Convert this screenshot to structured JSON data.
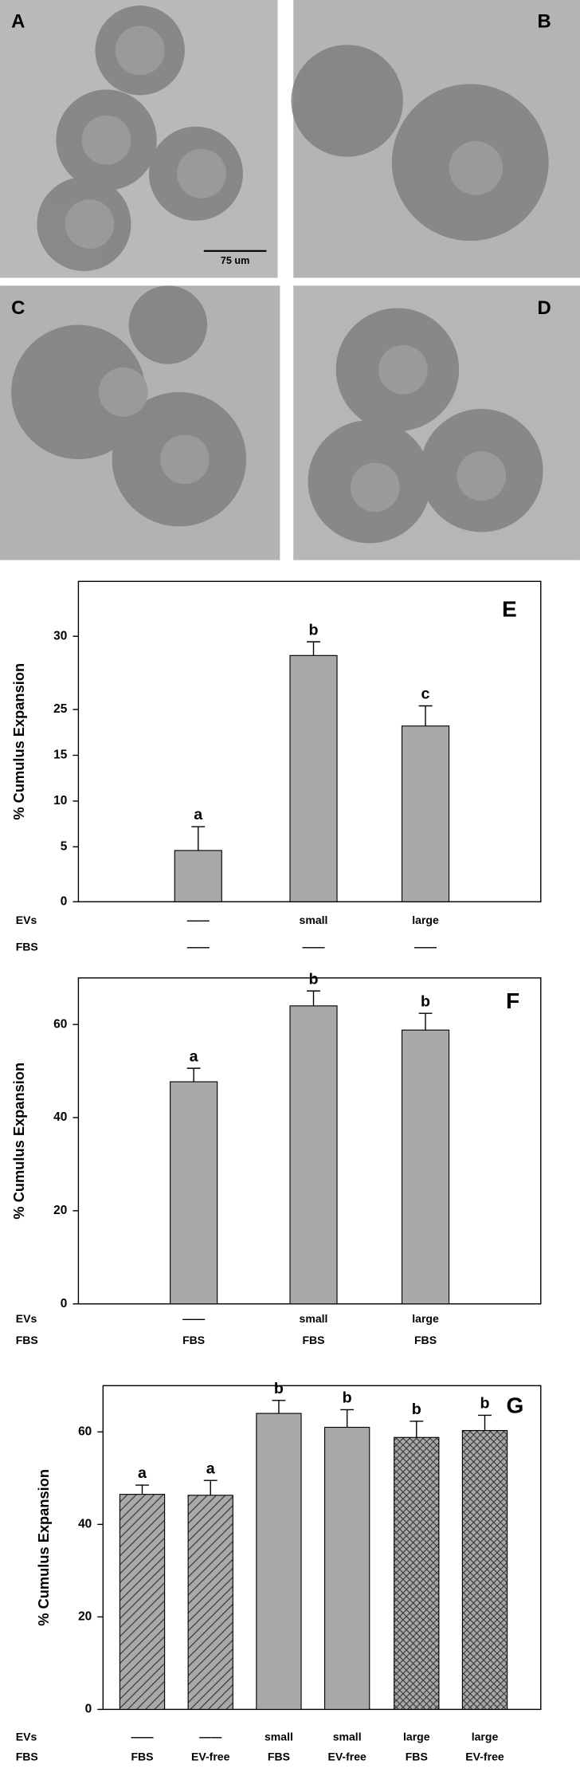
{
  "panels": [
    {
      "label": "A"
    },
    {
      "label": "B"
    },
    {
      "label": "C"
    },
    {
      "label": "D"
    }
  ],
  "scale_bar": "75 um",
  "chart_data": [
    {
      "type": "bar",
      "panel": "E",
      "ylabel": "% Cumulus Expansion",
      "row_labels": [
        "EVs",
        "FBS"
      ],
      "categories": [
        [
          "——",
          "——"
        ],
        [
          "small",
          "——"
        ],
        [
          "large",
          "——"
        ]
      ],
      "values": [
        5.6,
        26.9,
        19.2
      ],
      "errors": [
        2.6,
        1.5,
        2.2
      ],
      "letters": [
        "a",
        "b",
        "c"
      ],
      "color": "#a9a9a9",
      "ylim": [
        0,
        35
      ],
      "yticks": [
        0,
        {
          "value": 6,
          "label": "5"
        },
        {
          "value": 11,
          "label": "10"
        },
        {
          "value": 16,
          "label": "15"
        },
        {
          "value": 21,
          "label": "25"
        },
        {
          "value": 29,
          "label": "30"
        }
      ]
    },
    {
      "type": "bar",
      "panel": "F",
      "ylabel": "% Cumulus Expansion",
      "row_labels": [
        "EVs",
        "FBS"
      ],
      "categories": [
        [
          "——",
          "FBS"
        ],
        [
          "small",
          "FBS"
        ],
        [
          "large",
          "FBS"
        ]
      ],
      "values": [
        47.7,
        64,
        58.8
      ],
      "errors": [
        2.9,
        3.2,
        3.6
      ],
      "letters": [
        "a",
        "b",
        "b"
      ],
      "color": "#a9a9a9",
      "ylim": [
        0,
        70
      ],
      "yticks": [
        0,
        20,
        40,
        60
      ]
    },
    {
      "type": "bar",
      "panel": "G",
      "ylabel": "% Cumulus Expansion",
      "row_labels": [
        "EVs",
        "FBS"
      ],
      "categories": [
        [
          "——",
          "FBS"
        ],
        [
          "——",
          "EV-free"
        ],
        [
          "small",
          "FBS"
        ],
        [
          "small",
          "EV-free"
        ],
        [
          "large",
          "FBS"
        ],
        [
          "large",
          "EV-free"
        ]
      ],
      "values": [
        46.5,
        46.3,
        64,
        61,
        58.8,
        60.3
      ],
      "errors": [
        2,
        3.2,
        2.8,
        3.8,
        3.5,
        3.3
      ],
      "letters": [
        "a",
        "a",
        "b",
        "b",
        "b",
        "b"
      ],
      "patterns": [
        "hatch",
        "hatch",
        "solid",
        "solid",
        "crosshatch",
        "crosshatch"
      ],
      "color": "#a9a9a9",
      "ylim": [
        0,
        70
      ],
      "yticks": [
        0,
        20,
        40,
        60
      ]
    }
  ]
}
